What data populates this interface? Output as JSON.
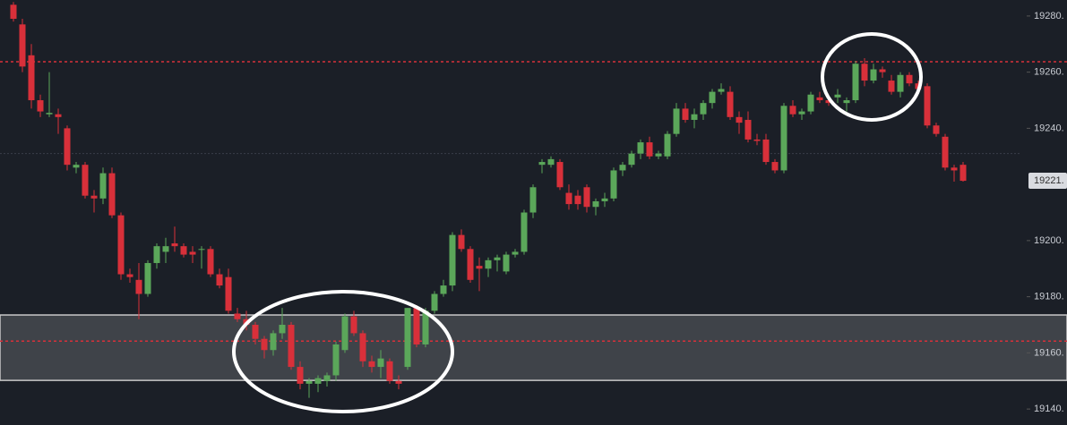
{
  "chart_data": {
    "type": "candlestick",
    "ylim": [
      19135.9,
      19285.7
    ],
    "yticks": [
      {
        "value": 19280,
        "label": "19280."
      },
      {
        "value": 19260,
        "label": "19260."
      },
      {
        "value": 19240,
        "label": "19240."
      },
      {
        "value": 19200,
        "label": "19200."
      },
      {
        "value": 19180,
        "label": "19180."
      },
      {
        "value": 19160,
        "label": "19160."
      },
      {
        "value": 19140,
        "label": "19140."
      }
    ],
    "last_price": {
      "value": 19221.3,
      "label": "19221."
    },
    "up_color": "#5ba75a",
    "down_color": "#d8303a",
    "dotted_levels": [
      19263.7,
      19164.2
    ],
    "level_color": "#d8303a",
    "reference_line": 19231,
    "zone": [
      19150.2,
      19173.5
    ],
    "ohlc": [
      [
        19284,
        19285,
        19278,
        19279
      ],
      [
        19277,
        19279,
        19260,
        19262
      ],
      [
        19266,
        19270,
        19247,
        19250
      ],
      [
        19250,
        19252,
        19244,
        19246
      ],
      [
        19245,
        19260,
        19244,
        19245.5
      ],
      [
        19245,
        19247,
        19238,
        19244
      ],
      [
        19240,
        19241,
        19225,
        19227
      ],
      [
        19226,
        19228,
        19224,
        19227
      ],
      [
        19227,
        19228,
        19215,
        19216
      ],
      [
        19216,
        19218,
        19210,
        19215
      ],
      [
        19215,
        19226,
        19213,
        19224
      ],
      [
        19224,
        19226,
        19208,
        19209
      ],
      [
        19209,
        19210,
        19186,
        19188
      ],
      [
        19188,
        19190,
        19185,
        19187
      ],
      [
        19186,
        19192,
        19172,
        19181
      ],
      [
        19181,
        19193,
        19180,
        19192
      ],
      [
        19192,
        19199,
        19190,
        19198
      ],
      [
        19196,
        19201,
        19192,
        19198
      ],
      [
        19199,
        19205,
        19196,
        19198
      ],
      [
        19198,
        19199,
        19194,
        19195
      ],
      [
        19196,
        19198,
        19192,
        19195
      ],
      [
        19197,
        19198,
        19190,
        19197
      ],
      [
        19197,
        19198,
        19187,
        19188
      ],
      [
        19188,
        19190,
        19183,
        19184
      ],
      [
        19187,
        19190,
        19174,
        19175
      ],
      [
        19174,
        19176,
        19171,
        19172
      ],
      [
        19172,
        19175,
        19168,
        19170
      ],
      [
        19170,
        19171,
        19163,
        19165
      ],
      [
        19165,
        19166,
        19158,
        19161
      ],
      [
        19161,
        19168,
        19159,
        19167
      ],
      [
        19167,
        19176,
        19165,
        19170
      ],
      [
        19170,
        19171,
        19154,
        19155
      ],
      [
        19155,
        19157,
        19147,
        19149
      ],
      [
        19149,
        19151,
        19144,
        19150
      ],
      [
        19149,
        19152,
        19146,
        19151
      ],
      [
        19150,
        19153,
        19148,
        19152
      ],
      [
        19152,
        19164,
        19150,
        19163
      ],
      [
        19161,
        19174,
        19160,
        19173
      ],
      [
        19173,
        19175,
        19166,
        19167
      ],
      [
        19167,
        19168,
        19155,
        19157
      ],
      [
        19157,
        19159,
        19153,
        19155
      ],
      [
        19155,
        19161,
        19151,
        19158
      ],
      [
        19157,
        19158,
        19149,
        19150
      ],
      [
        19150,
        19152,
        19147,
        19149
      ],
      [
        19155,
        19176,
        19154,
        19176
      ],
      [
        19176,
        19177,
        19162,
        19163
      ],
      [
        19163,
        19176,
        19162,
        19175
      ],
      [
        19175,
        19182,
        19174,
        19181
      ],
      [
        19181,
        19186,
        19180,
        19184
      ],
      [
        19184,
        19203,
        19182,
        19202
      ],
      [
        19202,
        19204,
        19196,
        19197
      ],
      [
        19197,
        19198,
        19185,
        19186
      ],
      [
        19191,
        19194,
        19182,
        19190
      ],
      [
        19190,
        19194,
        19187,
        19193
      ],
      [
        19193,
        19195,
        19189,
        19194
      ],
      [
        19189,
        19196,
        19188,
        19195
      ],
      [
        19195,
        19197,
        19194,
        19196
      ],
      [
        19196,
        19211,
        19195,
        19210
      ],
      [
        19210,
        19220,
        19208,
        19219
      ],
      [
        19227,
        19229,
        19224,
        19228
      ],
      [
        19227,
        19230,
        19226,
        19229
      ],
      [
        19228,
        19229,
        19218,
        19219
      ],
      [
        19217,
        19220,
        19211,
        19213
      ],
      [
        19216,
        19218,
        19211,
        19213
      ],
      [
        19219,
        19220,
        19210,
        19212
      ],
      [
        19212,
        19215,
        19209,
        19214
      ],
      [
        19214,
        19217,
        19212,
        19215
      ],
      [
        19215,
        19226,
        19214,
        19225
      ],
      [
        19225,
        19228,
        19223,
        19227
      ],
      [
        19227,
        19232,
        19226,
        19231
      ],
      [
        19231,
        19236,
        19229,
        19235
      ],
      [
        19235,
        19237,
        19229,
        19230
      ],
      [
        19230,
        19232,
        19229,
        19231
      ],
      [
        19230,
        19239,
        19229,
        19238
      ],
      [
        19238,
        19249,
        19237,
        19247
      ],
      [
        19247,
        19249,
        19242,
        19243
      ],
      [
        19243,
        19247,
        19240,
        19245
      ],
      [
        19245,
        19250,
        19243,
        19249
      ],
      [
        19249,
        19254,
        19247,
        19253
      ],
      [
        19253,
        19256,
        19252,
        19254
      ],
      [
        19253,
        19255,
        19243,
        19244
      ],
      [
        19244,
        19246,
        19238,
        19242
      ],
      [
        19243,
        19246,
        19235,
        19236
      ],
      [
        19236,
        19238,
        19234,
        19235.5
      ],
      [
        19236,
        19238,
        19227,
        19228
      ],
      [
        19228,
        19229,
        19224,
        19225
      ],
      [
        19225,
        19249,
        19224,
        19248
      ],
      [
        19248,
        19250,
        19244,
        19245
      ],
      [
        19245,
        19247,
        19243,
        19246
      ],
      [
        19246,
        19253,
        19245,
        19252
      ],
      [
        19251,
        19253,
        19249,
        19250
      ],
      [
        19250,
        19252,
        19248,
        19249
      ],
      [
        19251,
        19254,
        19249,
        19252
      ],
      [
        19249,
        19251,
        19246,
        19250
      ],
      [
        19250,
        19264,
        19249,
        19263
      ],
      [
        19263,
        19265,
        19255,
        19257
      ],
      [
        19257,
        19263,
        19256,
        19261
      ],
      [
        19261,
        19262,
        19258,
        19260
      ],
      [
        19257,
        19259,
        19252,
        19253
      ],
      [
        19253,
        19260,
        19251,
        19259
      ],
      [
        19259,
        19260,
        19255,
        19256
      ],
      [
        19256,
        19257,
        19253,
        19254
      ],
      [
        19255,
        19256,
        19240,
        19241
      ],
      [
        19241,
        19242,
        19237,
        19238
      ],
      [
        19237,
        19238,
        19225,
        19226
      ],
      [
        19226,
        19227,
        19221,
        19225
      ],
      [
        19227,
        19228,
        19221,
        19221.3
      ]
    ]
  }
}
